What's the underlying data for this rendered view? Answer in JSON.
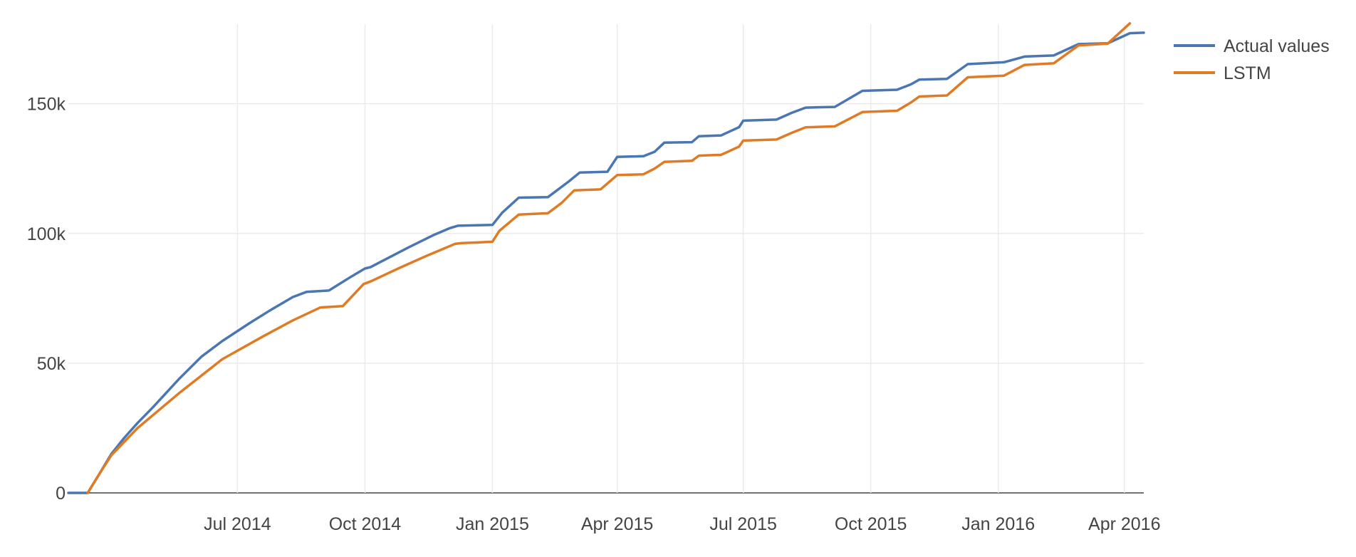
{
  "chart_data": {
    "type": "line",
    "title": "",
    "xlabel": "",
    "ylabel": "",
    "x_axis": {
      "type": "date",
      "range": [
        "2014-03-01",
        "2016-04-15"
      ],
      "ticks": [
        {
          "date": "2014-07-01",
          "label": "Jul 2014"
        },
        {
          "date": "2014-10-01",
          "label": "Oct 2014"
        },
        {
          "date": "2015-01-01",
          "label": "Jan 2015"
        },
        {
          "date": "2015-04-01",
          "label": "Apr 2015"
        },
        {
          "date": "2015-07-01",
          "label": "Jul 2015"
        },
        {
          "date": "2015-10-01",
          "label": "Oct 2015"
        },
        {
          "date": "2016-01-01",
          "label": "Jan 2016"
        },
        {
          "date": "2016-04-01",
          "label": "Apr 2016"
        }
      ]
    },
    "y_axis": {
      "range": [
        0,
        190000
      ],
      "ticks": [
        {
          "value": 0,
          "label": "0"
        },
        {
          "value": 50000,
          "label": "50k"
        },
        {
          "value": 100000,
          "label": "100k"
        },
        {
          "value": 150000,
          "label": "150k"
        }
      ]
    },
    "grid": true,
    "legend_position": "top-right",
    "series": [
      {
        "name": "Actual values",
        "color": "#4a76b3",
        "points": [
          [
            "2014-03-01",
            0
          ],
          [
            "2014-03-15",
            0
          ],
          [
            "2014-03-23",
            7000
          ],
          [
            "2014-04-01",
            15000
          ],
          [
            "2014-04-10",
            21000
          ],
          [
            "2014-04-20",
            27000
          ],
          [
            "2014-05-01",
            33000
          ],
          [
            "2014-05-20",
            44000
          ],
          [
            "2014-06-05",
            52500
          ],
          [
            "2014-06-20",
            58500
          ],
          [
            "2014-07-10",
            65500
          ],
          [
            "2014-07-25",
            70500
          ],
          [
            "2014-08-10",
            75500
          ],
          [
            "2014-08-20",
            77500
          ],
          [
            "2014-09-05",
            78000
          ],
          [
            "2014-09-20",
            83000
          ],
          [
            "2014-10-01",
            86500
          ],
          [
            "2014-10-05",
            87000
          ],
          [
            "2014-11-01",
            94500
          ],
          [
            "2014-11-20",
            99500
          ],
          [
            "2014-12-01",
            102000
          ],
          [
            "2014-12-07",
            103000
          ],
          [
            "2015-01-01",
            103300
          ],
          [
            "2015-01-08",
            108000
          ],
          [
            "2015-01-20",
            113800
          ],
          [
            "2015-02-10",
            114000
          ],
          [
            "2015-02-25",
            120000
          ],
          [
            "2015-03-05",
            123500
          ],
          [
            "2015-03-25",
            123800
          ],
          [
            "2015-04-01",
            129500
          ],
          [
            "2015-04-20",
            129800
          ],
          [
            "2015-04-28",
            131500
          ],
          [
            "2015-05-05",
            135000
          ],
          [
            "2015-05-25",
            135200
          ],
          [
            "2015-05-30",
            137500
          ],
          [
            "2015-06-15",
            137800
          ],
          [
            "2015-06-28",
            141000
          ],
          [
            "2015-07-01",
            143500
          ],
          [
            "2015-07-25",
            143900
          ],
          [
            "2015-08-05",
            146500
          ],
          [
            "2015-08-15",
            148500
          ],
          [
            "2015-09-05",
            148800
          ],
          [
            "2015-09-25",
            155000
          ],
          [
            "2015-10-20",
            155400
          ],
          [
            "2015-10-30",
            157500
          ],
          [
            "2015-11-05",
            159300
          ],
          [
            "2015-11-25",
            159600
          ],
          [
            "2015-12-10",
            165300
          ],
          [
            "2016-01-05",
            166000
          ],
          [
            "2016-01-20",
            168200
          ],
          [
            "2016-02-10",
            168600
          ],
          [
            "2016-02-28",
            173000
          ],
          [
            "2016-03-20",
            173300
          ],
          [
            "2016-04-05",
            177200
          ],
          [
            "2016-04-15",
            177400
          ]
        ]
      },
      {
        "name": "LSTM",
        "color": "#e07b25",
        "points": [
          [
            "2014-03-15",
            0
          ],
          [
            "2014-03-23",
            7000
          ],
          [
            "2014-04-01",
            14500
          ],
          [
            "2014-04-10",
            19500
          ],
          [
            "2014-04-20",
            25000
          ],
          [
            "2014-05-20",
            38500
          ],
          [
            "2014-06-20",
            51500
          ],
          [
            "2014-07-20",
            60500
          ],
          [
            "2014-08-10",
            66500
          ],
          [
            "2014-08-30",
            71500
          ],
          [
            "2014-09-15",
            72000
          ],
          [
            "2014-09-30",
            80500
          ],
          [
            "2014-10-05",
            81500
          ],
          [
            "2014-10-25",
            86500
          ],
          [
            "2014-11-15",
            91500
          ],
          [
            "2014-12-05",
            96000
          ],
          [
            "2014-12-10",
            96300
          ],
          [
            "2014-12-20",
            96500
          ],
          [
            "2015-01-01",
            96800
          ],
          [
            "2015-01-06",
            101000
          ],
          [
            "2015-01-20",
            107300
          ],
          [
            "2015-02-10",
            107800
          ],
          [
            "2015-02-20",
            111800
          ],
          [
            "2015-03-01",
            116600
          ],
          [
            "2015-03-20",
            117000
          ],
          [
            "2015-04-01",
            122500
          ],
          [
            "2015-04-20",
            122800
          ],
          [
            "2015-04-28",
            125000
          ],
          [
            "2015-05-05",
            127600
          ],
          [
            "2015-05-25",
            128000
          ],
          [
            "2015-05-30",
            130000
          ],
          [
            "2015-06-15",
            130300
          ],
          [
            "2015-06-28",
            133500
          ],
          [
            "2015-07-01",
            135800
          ],
          [
            "2015-07-25",
            136200
          ],
          [
            "2015-08-05",
            138800
          ],
          [
            "2015-08-15",
            140900
          ],
          [
            "2015-09-05",
            141300
          ],
          [
            "2015-09-25",
            146800
          ],
          [
            "2015-10-20",
            147300
          ],
          [
            "2015-10-30",
            150500
          ],
          [
            "2015-11-05",
            152800
          ],
          [
            "2015-11-25",
            153200
          ],
          [
            "2015-12-10",
            160200
          ],
          [
            "2016-01-05",
            160800
          ],
          [
            "2016-01-20",
            165000
          ],
          [
            "2016-02-10",
            165600
          ],
          [
            "2016-02-28",
            172500
          ],
          [
            "2016-03-20",
            173200
          ],
          [
            "2016-04-05",
            181000
          ]
        ]
      }
    ]
  }
}
